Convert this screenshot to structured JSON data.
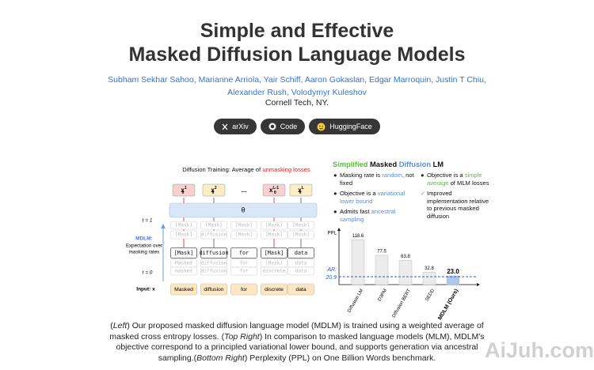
{
  "header": {
    "title_lines": [
      "Simple and Effective",
      "Masked Diffusion Language Models"
    ],
    "author_lines": [
      [
        "Subham Sekhar Sahoo,",
        "Marianne Arriola,",
        "Yair Schiff,",
        "Aaron Gokaslan,",
        "Edgar Marroquin,",
        "Justin T Chiu,"
      ],
      [
        "Alexander Rush,",
        "Volodymyr Kuleshov"
      ]
    ],
    "affiliation": "Cornell Tech, NY.",
    "buttons": [
      "arXiv",
      "Code",
      "HuggingFace"
    ]
  },
  "figure": {
    "diagram": {
      "title": [
        {
          "text": "Diffusion Training: Average of ",
          "color": "#111111"
        },
        {
          "text": "unmasking losses",
          "color": "#e0201b"
        }
      ],
      "outputs": [
        {
          "base": "x",
          "sub": "θ",
          "sup": "1",
          "color": "#f7d0d0"
        },
        {
          "base": "x",
          "sub": "θ",
          "sup": "2",
          "color": "#fbeec6"
        },
        {
          "base": "...",
          "sub": "",
          "sup": "",
          "color": "none"
        },
        {
          "base": "x",
          "sub": "θ",
          "sup": "L-1",
          "color": "#f7d0d0"
        },
        {
          "base": "x",
          "sub": "θ",
          "sup": "L",
          "color": "#fbeec6"
        }
      ],
      "model": "θ",
      "t_top": "t = 1",
      "t_bottom": "t = 0",
      "side_label": "MDLM:",
      "side_text": [
        "Expectation over",
        "masking rates"
      ],
      "rows": [
        {
          "style": "faded",
          "cells": [
            "[Mask]",
            "[Mask]",
            "[Mask]",
            "[Mask]",
            "[Mask]"
          ]
        },
        {
          "style": "faded",
          "cells": [
            "[Mask]",
            "diffusion",
            "[Mask]",
            "[Mask]",
            "[Mask]"
          ]
        },
        {
          "style": "main",
          "cells": [
            "[Mask]",
            "diffusion",
            "for",
            "[Mask]",
            "data"
          ]
        },
        {
          "style": "faded",
          "cells": [
            "Masked",
            "diffusion",
            "for",
            "[Mask]",
            "data"
          ]
        },
        {
          "style": "faded",
          "cells": [
            "masked",
            "diffusion",
            "for",
            "discrete",
            "data"
          ]
        }
      ],
      "input_label": "Input: x",
      "input": [
        "Masked",
        "diffusion",
        "for",
        "discrete",
        "data"
      ]
    },
    "panel": {
      "title": [
        {
          "text": "Simplified ",
          "color": "#5fb847"
        },
        {
          "text": "Masked ",
          "color": "#111111"
        },
        {
          "text": "Diffusion ",
          "color": "#5b8fd8"
        },
        {
          "text": "LM",
          "color": "#111111"
        }
      ],
      "bullets_left": [
        [
          {
            "text": "Masking rate is ",
            "color": "#111111"
          },
          {
            "text": "random",
            "color": "#5b8fd8"
          },
          {
            "text": ", not fixed",
            "color": "#111111"
          }
        ],
        [
          {
            "text": "Objective is a ",
            "color": "#111111"
          },
          {
            "text": "variational lower bound",
            "color": "#5b8fd8"
          }
        ],
        [
          {
            "text": "Admits fast ",
            "color": "#111111"
          },
          {
            "text": "ancestral sampling",
            "color": "#5b8fd8"
          }
        ]
      ],
      "bullets_right": [
        [
          {
            "text": "Objective is a ",
            "color": "#111111"
          },
          {
            "text": "simple average",
            "color": "#5fb847"
          },
          {
            "text": " of MLM losses",
            "color": "#111111"
          }
        ],
        [
          {
            "text": "Improved implementation relative to previous masked diffusion",
            "color": "#111111"
          }
        ]
      ]
    }
  },
  "chart_data": {
    "type": "bar",
    "ylabel": "PPL",
    "categories": [
      "Diffusion LM",
      "D3PM",
      "Diffusion BERT",
      "SEDD",
      "MDLM (Ours)"
    ],
    "values": [
      118.6,
      77.5,
      63.8,
      32.8,
      23.0
    ],
    "value_labels": [
      "118.6",
      "77.5",
      "63.8",
      "32.8",
      "23.0"
    ],
    "colors": [
      "#ececec",
      "#ececec",
      "#ececec",
      "#ececec",
      "#a9c8ec"
    ],
    "ylim": [
      0,
      140
    ],
    "reference": {
      "label": "AR:",
      "value": 20.9,
      "color": "#2f5fd0"
    }
  },
  "caption": [
    {
      "text": "(",
      "italic": false
    },
    {
      "text": "Left",
      "italic": true
    },
    {
      "text": ") Our proposed masked diffusion language model (MDLM) is trained using a weighted average of masked cross entropy losses. (",
      "italic": false
    },
    {
      "text": "Top Right",
      "italic": true
    },
    {
      "text": ") In comparison to masked language models (MLM), MDLM's objective correspond to a principled variational lower bound, and supports generation via ancestral sampling.(",
      "italic": false
    },
    {
      "text": "Bottom Right",
      "italic": true
    },
    {
      "text": ") Perplexity (PPL) on One Billion Words benchmark.",
      "italic": false
    }
  ],
  "watermark": "AiJuh.com"
}
